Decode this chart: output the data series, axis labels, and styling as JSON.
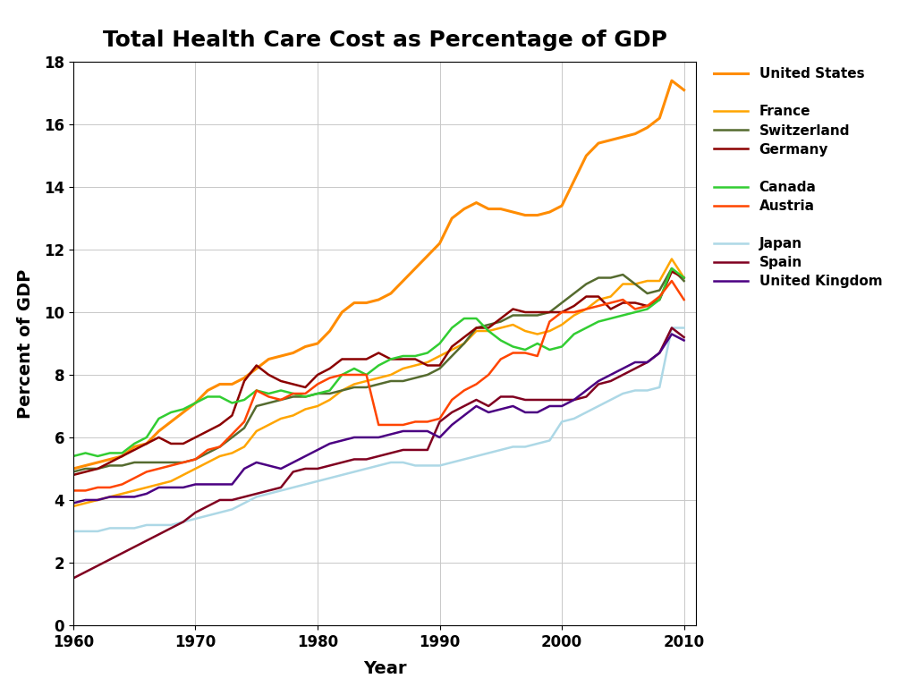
{
  "title": "Total Health Care Cost as Percentage of GDP",
  "xlabel": "Year",
  "ylabel": "Percent of GDP",
  "xlim": [
    1960,
    2011
  ],
  "ylim": [
    0,
    18
  ],
  "yticks": [
    0,
    2,
    4,
    6,
    8,
    10,
    12,
    14,
    16,
    18
  ],
  "xticks": [
    1960,
    1970,
    1980,
    1990,
    2000,
    2010
  ],
  "background_color": "#ffffff",
  "grid_color": "#c8c8c8",
  "series": {
    "United States": {
      "color": "#FF8C00",
      "linewidth": 2.2,
      "data": {
        "1960": 5.0,
        "1961": 5.1,
        "1962": 5.2,
        "1963": 5.3,
        "1964": 5.4,
        "1965": 5.7,
        "1966": 5.8,
        "1967": 6.2,
        "1968": 6.5,
        "1969": 6.8,
        "1970": 7.1,
        "1971": 7.5,
        "1972": 7.7,
        "1973": 7.7,
        "1974": 7.9,
        "1975": 8.2,
        "1976": 8.5,
        "1977": 8.6,
        "1978": 8.7,
        "1979": 8.9,
        "1980": 9.0,
        "1981": 9.4,
        "1982": 10.0,
        "1983": 10.3,
        "1984": 10.3,
        "1985": 10.4,
        "1986": 10.6,
        "1987": 11.0,
        "1988": 11.4,
        "1989": 11.8,
        "1990": 12.2,
        "1991": 13.0,
        "1992": 13.3,
        "1993": 13.5,
        "1994": 13.3,
        "1995": 13.3,
        "1996": 13.2,
        "1997": 13.1,
        "1998": 13.1,
        "1999": 13.2,
        "2000": 13.4,
        "2001": 14.2,
        "2002": 15.0,
        "2003": 15.4,
        "2004": 15.5,
        "2005": 15.6,
        "2006": 15.7,
        "2007": 15.9,
        "2008": 16.2,
        "2009": 17.4,
        "2010": 17.1
      }
    },
    "France": {
      "color": "#FFA500",
      "linewidth": 1.8,
      "data": {
        "1960": 3.8,
        "1961": 3.9,
        "1962": 4.0,
        "1963": 4.1,
        "1964": 4.2,
        "1965": 4.3,
        "1966": 4.4,
        "1967": 4.5,
        "1968": 4.6,
        "1969": 4.8,
        "1970": 5.0,
        "1971": 5.2,
        "1972": 5.4,
        "1973": 5.5,
        "1974": 5.7,
        "1975": 6.2,
        "1976": 6.4,
        "1977": 6.6,
        "1978": 6.7,
        "1979": 6.9,
        "1980": 7.0,
        "1981": 7.2,
        "1982": 7.5,
        "1983": 7.7,
        "1984": 7.8,
        "1985": 7.9,
        "1986": 8.0,
        "1987": 8.2,
        "1988": 8.3,
        "1989": 8.4,
        "1990": 8.6,
        "1991": 8.8,
        "1992": 9.0,
        "1993": 9.4,
        "1994": 9.4,
        "1995": 9.5,
        "1996": 9.6,
        "1997": 9.4,
        "1998": 9.3,
        "1999": 9.4,
        "2000": 9.6,
        "2001": 9.9,
        "2002": 10.1,
        "2003": 10.4,
        "2004": 10.5,
        "2005": 10.9,
        "2006": 10.9,
        "2007": 11.0,
        "2008": 11.0,
        "2009": 11.7,
        "2010": 11.1
      }
    },
    "Switzerland": {
      "color": "#556B2F",
      "linewidth": 1.8,
      "data": {
        "1960": 4.9,
        "1961": 5.0,
        "1962": 5.0,
        "1963": 5.1,
        "1964": 5.1,
        "1965": 5.2,
        "1966": 5.2,
        "1967": 5.2,
        "1968": 5.2,
        "1969": 5.2,
        "1970": 5.3,
        "1971": 5.5,
        "1972": 5.7,
        "1973": 6.0,
        "1974": 6.3,
        "1975": 7.0,
        "1976": 7.1,
        "1977": 7.2,
        "1978": 7.3,
        "1979": 7.3,
        "1980": 7.4,
        "1981": 7.4,
        "1982": 7.5,
        "1983": 7.6,
        "1984": 7.6,
        "1985": 7.7,
        "1986": 7.8,
        "1987": 7.8,
        "1988": 7.9,
        "1989": 8.0,
        "1990": 8.2,
        "1991": 8.6,
        "1992": 9.0,
        "1993": 9.5,
        "1994": 9.6,
        "1995": 9.7,
        "1996": 9.9,
        "1997": 9.9,
        "1998": 9.9,
        "1999": 10.0,
        "2000": 10.3,
        "2001": 10.6,
        "2002": 10.9,
        "2003": 11.1,
        "2004": 11.1,
        "2005": 11.2,
        "2006": 10.9,
        "2007": 10.6,
        "2008": 10.7,
        "2009": 11.4,
        "2010": 11.0
      }
    },
    "Germany": {
      "color": "#8B0000",
      "linewidth": 1.8,
      "data": {
        "1960": 4.8,
        "1961": 4.9,
        "1962": 5.0,
        "1963": 5.2,
        "1964": 5.4,
        "1965": 5.6,
        "1966": 5.8,
        "1967": 6.0,
        "1968": 5.8,
        "1969": 5.8,
        "1970": 6.0,
        "1971": 6.2,
        "1972": 6.4,
        "1973": 6.7,
        "1974": 7.8,
        "1975": 8.3,
        "1976": 8.0,
        "1977": 7.8,
        "1978": 7.7,
        "1979": 7.6,
        "1980": 8.0,
        "1981": 8.2,
        "1982": 8.5,
        "1983": 8.5,
        "1984": 8.5,
        "1985": 8.7,
        "1986": 8.5,
        "1987": 8.5,
        "1988": 8.5,
        "1989": 8.3,
        "1990": 8.3,
        "1991": 8.9,
        "1992": 9.2,
        "1993": 9.5,
        "1994": 9.5,
        "1995": 9.8,
        "1996": 10.1,
        "1997": 10.0,
        "1998": 10.0,
        "1999": 10.0,
        "2000": 10.0,
        "2001": 10.2,
        "2002": 10.5,
        "2003": 10.5,
        "2004": 10.1,
        "2005": 10.3,
        "2006": 10.3,
        "2007": 10.2,
        "2008": 10.4,
        "2009": 11.3,
        "2010": 11.1
      }
    },
    "Canada": {
      "color": "#32CD32",
      "linewidth": 1.8,
      "data": {
        "1960": 5.4,
        "1961": 5.5,
        "1962": 5.4,
        "1963": 5.5,
        "1964": 5.5,
        "1965": 5.8,
        "1966": 6.0,
        "1967": 6.6,
        "1968": 6.8,
        "1969": 6.9,
        "1970": 7.1,
        "1971": 7.3,
        "1972": 7.3,
        "1973": 7.1,
        "1974": 7.2,
        "1975": 7.5,
        "1976": 7.4,
        "1977": 7.5,
        "1978": 7.4,
        "1979": 7.3,
        "1980": 7.4,
        "1981": 7.5,
        "1982": 8.0,
        "1983": 8.2,
        "1984": 8.0,
        "1985": 8.3,
        "1986": 8.5,
        "1987": 8.6,
        "1988": 8.6,
        "1989": 8.7,
        "1990": 9.0,
        "1991": 9.5,
        "1992": 9.8,
        "1993": 9.8,
        "1994": 9.4,
        "1995": 9.1,
        "1996": 8.9,
        "1997": 8.8,
        "1998": 9.0,
        "1999": 8.8,
        "2000": 8.9,
        "2001": 9.3,
        "2002": 9.5,
        "2003": 9.7,
        "2004": 9.8,
        "2005": 9.9,
        "2006": 10.0,
        "2007": 10.1,
        "2008": 10.4,
        "2009": 11.4,
        "2010": 11.1
      }
    },
    "Austria": {
      "color": "#FF4500",
      "linewidth": 1.8,
      "data": {
        "1960": 4.3,
        "1961": 4.3,
        "1962": 4.4,
        "1963": 4.4,
        "1964": 4.5,
        "1965": 4.7,
        "1966": 4.9,
        "1967": 5.0,
        "1968": 5.1,
        "1969": 5.2,
        "1970": 5.3,
        "1971": 5.6,
        "1972": 5.7,
        "1973": 6.1,
        "1974": 6.5,
        "1975": 7.5,
        "1976": 7.3,
        "1977": 7.2,
        "1978": 7.4,
        "1979": 7.4,
        "1980": 7.7,
        "1981": 7.9,
        "1982": 8.0,
        "1983": 8.0,
        "1984": 8.0,
        "1985": 6.4,
        "1986": 6.4,
        "1987": 6.4,
        "1988": 6.5,
        "1989": 6.5,
        "1990": 6.6,
        "1991": 7.2,
        "1992": 7.5,
        "1993": 7.7,
        "1994": 8.0,
        "1995": 8.5,
        "1996": 8.7,
        "1997": 8.7,
        "1998": 8.6,
        "1999": 9.7,
        "2000": 10.0,
        "2001": 10.0,
        "2002": 10.1,
        "2003": 10.2,
        "2004": 10.3,
        "2005": 10.4,
        "2006": 10.1,
        "2007": 10.2,
        "2008": 10.5,
        "2009": 11.0,
        "2010": 10.4
      }
    },
    "Japan": {
      "color": "#ADD8E6",
      "linewidth": 1.8,
      "data": {
        "1960": 3.0,
        "1961": 3.0,
        "1962": 3.0,
        "1963": 3.1,
        "1964": 3.1,
        "1965": 3.1,
        "1966": 3.2,
        "1967": 3.2,
        "1968": 3.2,
        "1969": 3.3,
        "1970": 3.4,
        "1971": 3.5,
        "1972": 3.6,
        "1973": 3.7,
        "1974": 3.9,
        "1975": 4.1,
        "1976": 4.2,
        "1977": 4.3,
        "1978": 4.4,
        "1979": 4.5,
        "1980": 4.6,
        "1981": 4.7,
        "1982": 4.8,
        "1983": 4.9,
        "1984": 5.0,
        "1985": 5.1,
        "1986": 5.2,
        "1987": 5.2,
        "1988": 5.1,
        "1989": 5.1,
        "1990": 5.1,
        "1991": 5.2,
        "1992": 5.3,
        "1993": 5.4,
        "1994": 5.5,
        "1995": 5.6,
        "1996": 5.7,
        "1997": 5.7,
        "1998": 5.8,
        "1999": 5.9,
        "2000": 6.5,
        "2001": 6.6,
        "2002": 6.8,
        "2003": 7.0,
        "2004": 7.2,
        "2005": 7.4,
        "2006": 7.5,
        "2007": 7.5,
        "2008": 7.6,
        "2009": 9.5,
        "2010": 9.5
      }
    },
    "Spain": {
      "color": "#800020",
      "linewidth": 1.8,
      "data": {
        "1960": 1.5,
        "1961": 1.7,
        "1962": 1.9,
        "1963": 2.1,
        "1964": 2.3,
        "1965": 2.5,
        "1966": 2.7,
        "1967": 2.9,
        "1968": 3.1,
        "1969": 3.3,
        "1970": 3.6,
        "1971": 3.8,
        "1972": 4.0,
        "1973": 4.0,
        "1974": 4.1,
        "1975": 4.2,
        "1976": 4.3,
        "1977": 4.4,
        "1978": 4.9,
        "1979": 5.0,
        "1980": 5.0,
        "1981": 5.1,
        "1982": 5.2,
        "1983": 5.3,
        "1984": 5.3,
        "1985": 5.4,
        "1986": 5.5,
        "1987": 5.6,
        "1988": 5.6,
        "1989": 5.6,
        "1990": 6.5,
        "1991": 6.8,
        "1992": 7.0,
        "1993": 7.2,
        "1994": 7.0,
        "1995": 7.3,
        "1996": 7.3,
        "1997": 7.2,
        "1998": 7.2,
        "1999": 7.2,
        "2000": 7.2,
        "2001": 7.2,
        "2002": 7.3,
        "2003": 7.7,
        "2004": 7.8,
        "2005": 8.0,
        "2006": 8.2,
        "2007": 8.4,
        "2008": 8.7,
        "2009": 9.5,
        "2010": 9.2
      }
    },
    "United Kingdom": {
      "color": "#4B0082",
      "linewidth": 1.8,
      "data": {
        "1960": 3.9,
        "1961": 4.0,
        "1962": 4.0,
        "1963": 4.1,
        "1964": 4.1,
        "1965": 4.1,
        "1966": 4.2,
        "1967": 4.4,
        "1968": 4.4,
        "1969": 4.4,
        "1970": 4.5,
        "1971": 4.5,
        "1972": 4.5,
        "1973": 4.5,
        "1974": 5.0,
        "1975": 5.2,
        "1976": 5.1,
        "1977": 5.0,
        "1978": 5.2,
        "1979": 5.4,
        "1980": 5.6,
        "1981": 5.8,
        "1982": 5.9,
        "1983": 6.0,
        "1984": 6.0,
        "1985": 6.0,
        "1986": 6.1,
        "1987": 6.2,
        "1988": 6.2,
        "1989": 6.2,
        "1990": 6.0,
        "1991": 6.4,
        "1992": 6.7,
        "1993": 7.0,
        "1994": 6.8,
        "1995": 6.9,
        "1996": 7.0,
        "1997": 6.8,
        "1998": 6.8,
        "1999": 7.0,
        "2000": 7.0,
        "2001": 7.2,
        "2002": 7.5,
        "2003": 7.8,
        "2004": 8.0,
        "2005": 8.2,
        "2006": 8.4,
        "2007": 8.4,
        "2008": 8.7,
        "2009": 9.3,
        "2010": 9.1
      }
    }
  },
  "legend_order": [
    "United States",
    "France",
    "Switzerland",
    "Germany",
    "Canada",
    "Austria",
    "Japan",
    "Spain",
    "United Kingdom"
  ]
}
